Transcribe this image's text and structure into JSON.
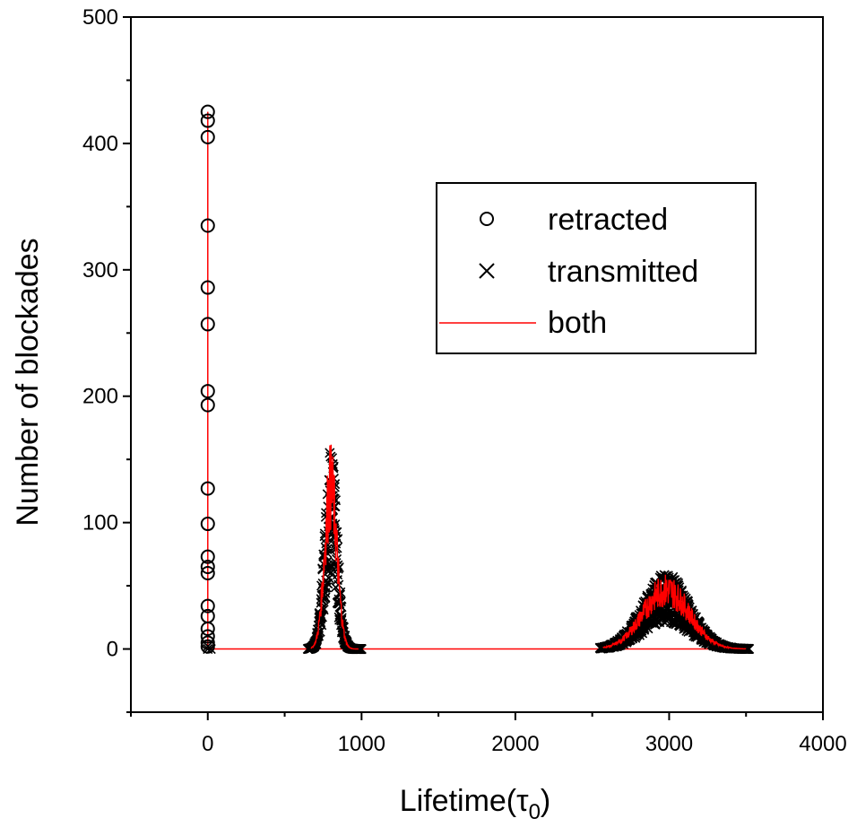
{
  "chart_data": {
    "type": "scatter",
    "xlabel": "Lifetime(τ0)",
    "xlabel_main": "Lifetime(τ",
    "xlabel_sub": "0",
    "xlabel_close": ")",
    "ylabel": "Number of blockades",
    "xlim": [
      -500,
      4000
    ],
    "ylim": [
      -50,
      500
    ],
    "xticks": [
      0,
      1000,
      2000,
      3000,
      4000
    ],
    "yticks": [
      0,
      100,
      200,
      300,
      400,
      500
    ],
    "x_tick_labels": [
      "0",
      "1000",
      "2000",
      "3000",
      "4000"
    ],
    "y_tick_labels": [
      "0",
      "100",
      "200",
      "300",
      "400",
      "500"
    ],
    "grid": false,
    "legend_position": "upper-right",
    "series": [
      {
        "name": "retracted",
        "marker": "circle",
        "color": "#000000",
        "points": [
          [
            0,
            425
          ],
          [
            0,
            418
          ],
          [
            0,
            405
          ],
          [
            0,
            335
          ],
          [
            0,
            286
          ],
          [
            0,
            257
          ],
          [
            0,
            204
          ],
          [
            0,
            193
          ],
          [
            0,
            127
          ],
          [
            0,
            99
          ],
          [
            0,
            73
          ],
          [
            0,
            65
          ],
          [
            0,
            60
          ],
          [
            0,
            34
          ],
          [
            0,
            26
          ],
          [
            0,
            16
          ],
          [
            0,
            10
          ],
          [
            0,
            5
          ],
          [
            0,
            2
          ]
        ]
      },
      {
        "name": "transmitted",
        "marker": "cross",
        "color": "#000000",
        "peaks": [
          {
            "center": 800,
            "peak": 165,
            "sigma": 40,
            "x_range": [
              650,
              1000
            ]
          },
          {
            "center": 2980,
            "peak": 60,
            "sigma": 150,
            "x_range": [
              2550,
              3520
            ]
          }
        ]
      },
      {
        "name": "both",
        "marker": "line",
        "color": "#ff0000"
      }
    ]
  }
}
